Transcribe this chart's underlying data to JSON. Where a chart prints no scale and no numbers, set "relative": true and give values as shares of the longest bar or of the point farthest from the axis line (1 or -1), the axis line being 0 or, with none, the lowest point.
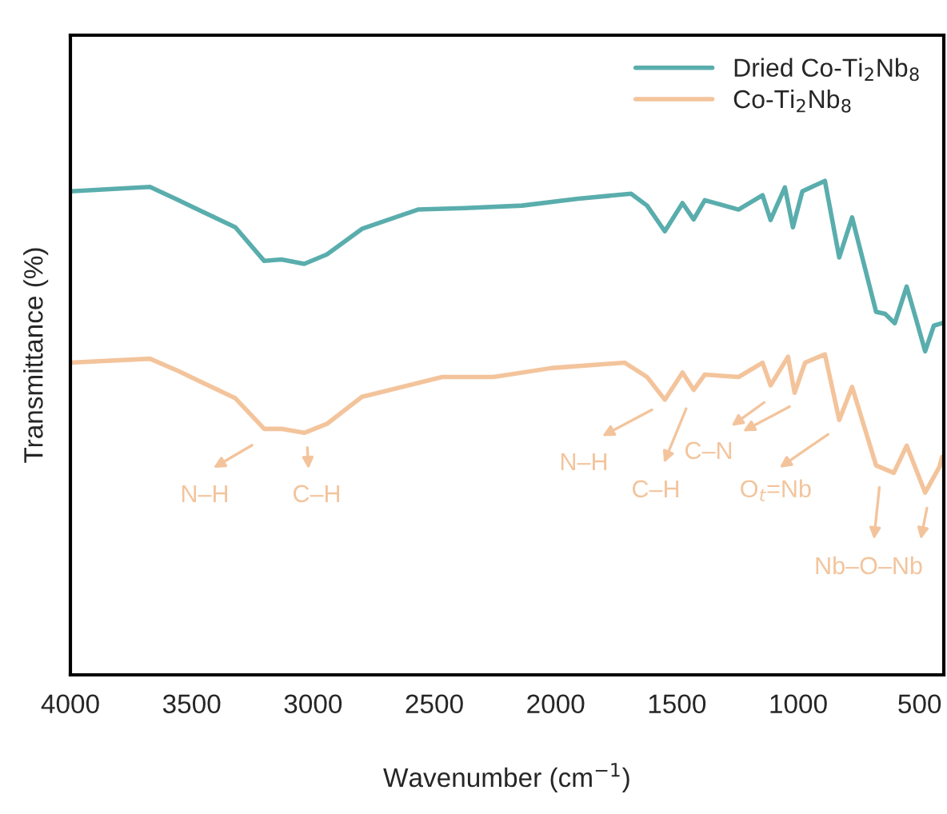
{
  "chart_data": {
    "type": "line",
    "relative": true,
    "xlabel": "Wavenumber (cm$^{−1}$)",
    "ylabel": "Transmittance (%)",
    "xlim": [
      4000,
      400
    ],
    "xticks": [
      4000,
      3500,
      3000,
      2500,
      2000,
      1500,
      1000,
      500
    ],
    "tick_labels": "x",
    "grid": false,
    "legend": "top right",
    "series": [
      {
        "name": "Dried Co-Ti$_{2}$Nb$_{8}$",
        "color": "#5aadad",
        "x": [
          4000,
          3672,
          3555,
          3320,
          3201,
          3130,
          3036,
          2943,
          2798,
          2567,
          2375,
          2138,
          1907,
          1689,
          1623,
          1550,
          1477,
          1431,
          1385,
          1246,
          1147,
          1114,
          1055,
          1022,
          983,
          890,
          831,
          778,
          679,
          642,
          602,
          553,
          513,
          477,
          441,
          407
        ],
        "values": [
          0.979,
          0.988,
          0.961,
          0.906,
          0.838,
          0.841,
          0.832,
          0.851,
          0.903,
          0.942,
          0.945,
          0.95,
          0.964,
          0.974,
          0.95,
          0.898,
          0.955,
          0.922,
          0.961,
          0.942,
          0.971,
          0.921,
          0.987,
          0.906,
          0.979,
          1.0,
          0.845,
          0.926,
          0.735,
          0.731,
          0.712,
          0.786,
          0.718,
          0.655,
          0.707,
          0.712
        ]
      },
      {
        "name": "Co-Ti$_{2}$Nb$_{8}$",
        "color": "#f3c49c",
        "x": [
          4000,
          3672,
          3555,
          3320,
          3201,
          3130,
          3036,
          2943,
          2798,
          2468,
          2257,
          2019,
          1715,
          1623,
          1550,
          1477,
          1431,
          1385,
          1246,
          1147,
          1114,
          1042,
          1015,
          972,
          890,
          831,
          778,
          679,
          606,
          553,
          477,
          418,
          407
        ],
        "values": [
          0.632,
          0.64,
          0.615,
          0.56,
          0.498,
          0.498,
          0.49,
          0.508,
          0.563,
          0.603,
          0.603,
          0.621,
          0.632,
          0.603,
          0.557,
          0.612,
          0.577,
          0.608,
          0.603,
          0.632,
          0.586,
          0.644,
          0.571,
          0.632,
          0.649,
          0.516,
          0.583,
          0.424,
          0.409,
          0.464,
          0.369,
          0.421,
          0.441
        ]
      }
    ],
    "annotations": [
      "N–H",
      "C–H",
      "N–H",
      "C–H",
      "C–N",
      "O$_{t}$=Nb",
      "Nb–O–Nb"
    ]
  }
}
